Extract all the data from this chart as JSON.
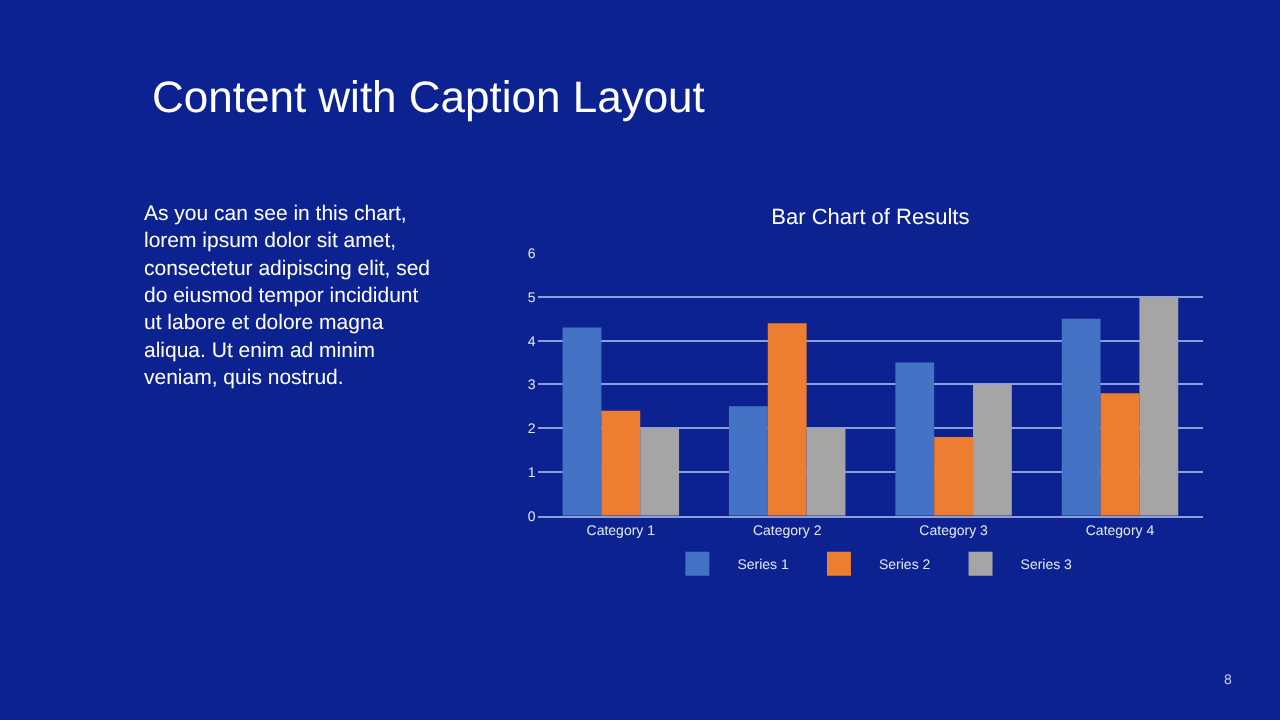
{
  "chart_data": {
    "type": "bar",
    "title": "Bar Chart of Results",
    "categories": [
      "Category 1",
      "Category 2",
      "Category 3",
      "Category 4"
    ],
    "series": [
      {
        "name": "Series 1",
        "color": "#4472c4",
        "values": [
          4.3,
          2.5,
          3.5,
          4.5
        ]
      },
      {
        "name": "Series 2",
        "color": "#ed7d31",
        "values": [
          2.4,
          4.4,
          1.8,
          2.8
        ]
      },
      {
        "name": "Series 3",
        "color": "#a5a5a5",
        "values": [
          2,
          2,
          3,
          5
        ]
      }
    ],
    "ylim": [
      0,
      6
    ],
    "yticks": [
      0,
      1,
      2,
      3,
      4,
      5,
      6
    ],
    "grid": "y",
    "legend": "bottom",
    "annotations": [
      "Content with Caption Layout",
      "As you can see in this chart,\nlorem ipsum dolor sit amet,\nconsectetur adipiscing elit, sed\ndo eiusmod tempor incididunt\nut labore et dolore magna\naliqua. Ut enim ad minim\nveniam, quis nostrud.",
      "8"
    ]
  }
}
